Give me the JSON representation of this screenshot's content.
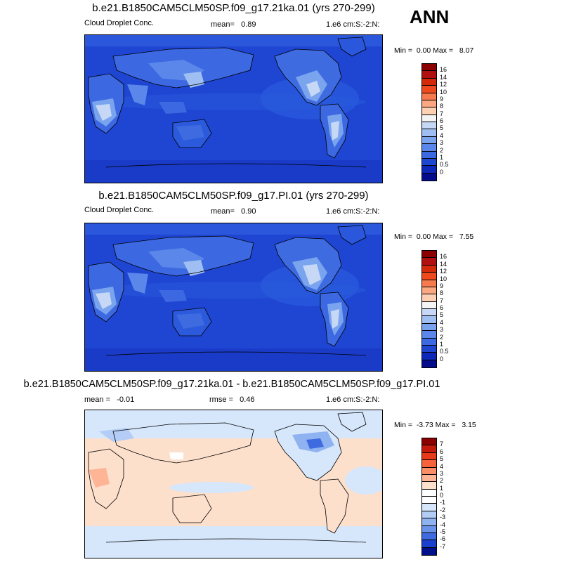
{
  "season": "ANN",
  "panels": [
    {
      "title": "b.e21.B1850CAM5CLM50SP.f09_g17.21ka.01 (yrs 270-299)",
      "left_label": "Cloud Droplet Conc.",
      "mid_label": "mean=",
      "mid_value": "0.89",
      "right_label": "1.e6 cm:S:-2:N:",
      "min_label": "Min =",
      "min_value": "0.00",
      "max_label": "Max =",
      "max_value": "8.07",
      "colorbar_labels": [
        "16",
        "14",
        "12",
        "10",
        "9",
        "8",
        "7",
        "6",
        "5",
        "4",
        "3",
        "2",
        "1",
        "0.5",
        "0"
      ]
    },
    {
      "title": "b.e21.B1850CAM5CLM50SP.f09_g17.PI.01 (yrs 270-299)",
      "left_label": "Cloud Droplet Conc.",
      "mid_label": "mean=",
      "mid_value": "0.90",
      "right_label": "1.e6 cm:S:-2:N:",
      "min_label": "Min =",
      "min_value": "0.00",
      "max_label": "Max =",
      "max_value": "7.55",
      "colorbar_labels": [
        "16",
        "14",
        "12",
        "10",
        "9",
        "8",
        "7",
        "6",
        "5",
        "4",
        "3",
        "2",
        "1",
        "0.5",
        "0"
      ]
    },
    {
      "title": "b.e21.B1850CAM5CLM50SP.f09_g17.21ka.01 - b.e21.B1850CAM5CLM50SP.f09_g17.PI.01",
      "left_label": "mean =",
      "left_value": "-0.01",
      "mid_label": "rmse =",
      "mid_value": "0.46",
      "right_label": "1.e6 cm:S:-2:N:",
      "min_label": "Min =",
      "min_value": "-3.73",
      "max_label": "Max =",
      "max_value": "3.15",
      "colorbar_labels": [
        "7",
        "6",
        "5",
        "4",
        "3",
        "2",
        "1",
        "0",
        "-1",
        "-2",
        "-3",
        "-4",
        "-5",
        "-6",
        "-7"
      ]
    }
  ],
  "colors": {
    "abs_scale": [
      "#8b0000",
      "#b01010",
      "#d42a0a",
      "#ee4a1e",
      "#f77a4e",
      "#fba882",
      "#fdd0b4",
      "#f4f4f4",
      "#c6d8f5",
      "#9fbff2",
      "#7aa4ee",
      "#5a87e9",
      "#3c68e1",
      "#1f46d1",
      "#0d28b8",
      "#030d8c"
    ],
    "diff_scale": [
      "#8b0000",
      "#c41a0c",
      "#e63a1a",
      "#f6623a",
      "#fb8e66",
      "#fdb596",
      "#fde0cc",
      "#ffffff",
      "#ffffff",
      "#d6e6fb",
      "#b3cdf6",
      "#8fb2f0",
      "#6a93ea",
      "#3f6be0",
      "#1a3fcc",
      "#00108c"
    ]
  }
}
